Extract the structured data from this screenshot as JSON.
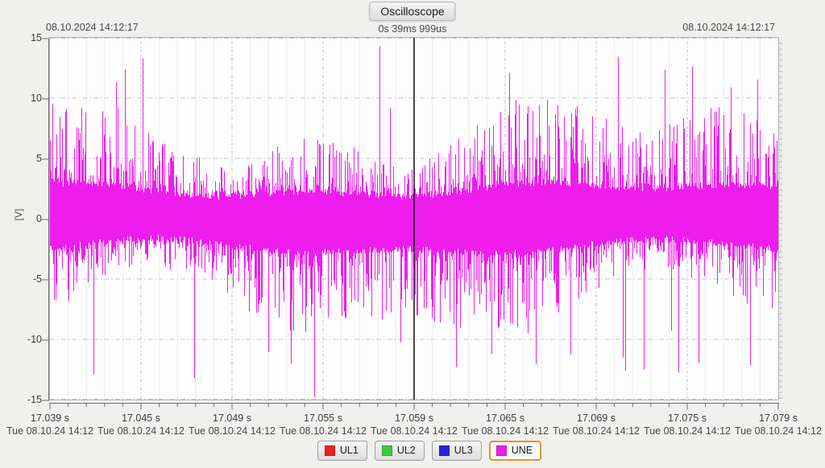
{
  "header": {
    "title": "Oscilloscope",
    "cursor_readout": "0s 39ms 999us",
    "timestamp_left": "08.10.2024 14:12:17",
    "timestamp_right": "08.10.2024 14:12:17"
  },
  "chart_data": {
    "type": "line",
    "title": "Oscilloscope",
    "ylabel": "[V]",
    "ylim": [
      -15,
      15
    ],
    "y_ticks": [
      "15",
      "10",
      "5",
      "0",
      "-5",
      "-10",
      "-15"
    ],
    "y_tick_values": [
      15,
      10,
      5,
      0,
      -5,
      -10,
      -15
    ],
    "x_range_s": [
      17.039,
      17.079
    ],
    "x_minor_per_major": 5,
    "grid": true,
    "legend_position": "bottom",
    "x_ticks": [
      {
        "time": "17.039 s",
        "date": "Tue 08.10.24 14:12"
      },
      {
        "time": "17.045 s",
        "date": "Tue 08.10.24 14:12"
      },
      {
        "time": "17.049 s",
        "date": "Tue 08.10.24 14:12"
      },
      {
        "time": "17.055 s",
        "date": "Tue 08.10.24 14:12"
      },
      {
        "time": "17.059 s",
        "date": "Tue 08.10.24 14:12"
      },
      {
        "time": "17.065 s",
        "date": "Tue 08.10.24 14:12"
      },
      {
        "time": "17.069 s",
        "date": "Tue 08.10.24 14:12"
      },
      {
        "time": "17.075 s",
        "date": "Tue 08.10.24 14:12"
      },
      {
        "time": "17.079 s",
        "date": "Tue 08.10.24 14:12"
      }
    ],
    "cursor": {
      "time_s": 17.059,
      "readout": "0s 39ms 999us",
      "color": "#1b1b1b"
    },
    "series": [
      {
        "label": "UL1",
        "color": "#e8231d",
        "visible": false,
        "selected": false
      },
      {
        "label": "UL2",
        "color": "#3ecb3e",
        "visible": false,
        "selected": false
      },
      {
        "label": "UL3",
        "color": "#2525cd",
        "visible": false,
        "selected": false
      },
      {
        "label": "UNE",
        "color": "#ee1dee",
        "visible": true,
        "selected": true,
        "signal": "broadband noise",
        "core_band_v": [
          -2.5,
          2.5
        ],
        "typical_spike_v": [
          3,
          9
        ],
        "max_v": 14.3,
        "min_v": -14.8,
        "noise_gen": {
          "seed": 20241008,
          "columns": 904,
          "base_v": 1.35,
          "env_gain_v": 1.5,
          "jitter_v": 0.55,
          "spike_prob": 0.68,
          "spike_pow": 1.9,
          "spike_gain_v": 5.6,
          "big_spike_prob": 0.011,
          "big_spike_min_v": 8.5,
          "big_spike_max_v": 13.2,
          "clip_v": 14.6
        },
        "notable_peaks": [
          {
            "t_s": 17.0414,
            "v": -12.9
          },
          {
            "t_s": 17.0431,
            "v": 12.4
          },
          {
            "t_s": 17.0441,
            "v": 13.3
          },
          {
            "t_s": 17.0469,
            "v": -13.2
          },
          {
            "t_s": 17.0535,
            "v": -14.8
          },
          {
            "t_s": 17.0571,
            "v": 14.3
          },
          {
            "t_s": 17.0613,
            "v": -12.3
          },
          {
            "t_s": 17.0642,
            "v": 12.1
          },
          {
            "t_s": 17.0702,
            "v": 13.4
          },
          {
            "t_s": 17.0706,
            "v": -12.6
          },
          {
            "t_s": 17.0716,
            "v": -12.5
          },
          {
            "t_s": 17.0764,
            "v": 10.9
          }
        ]
      }
    ],
    "selected_legend_border": "#e2942e",
    "grid_colors": {
      "minor_v": "#ececec",
      "major_v": "#bdbdbd",
      "horizontal": "#c6c6c6"
    }
  }
}
